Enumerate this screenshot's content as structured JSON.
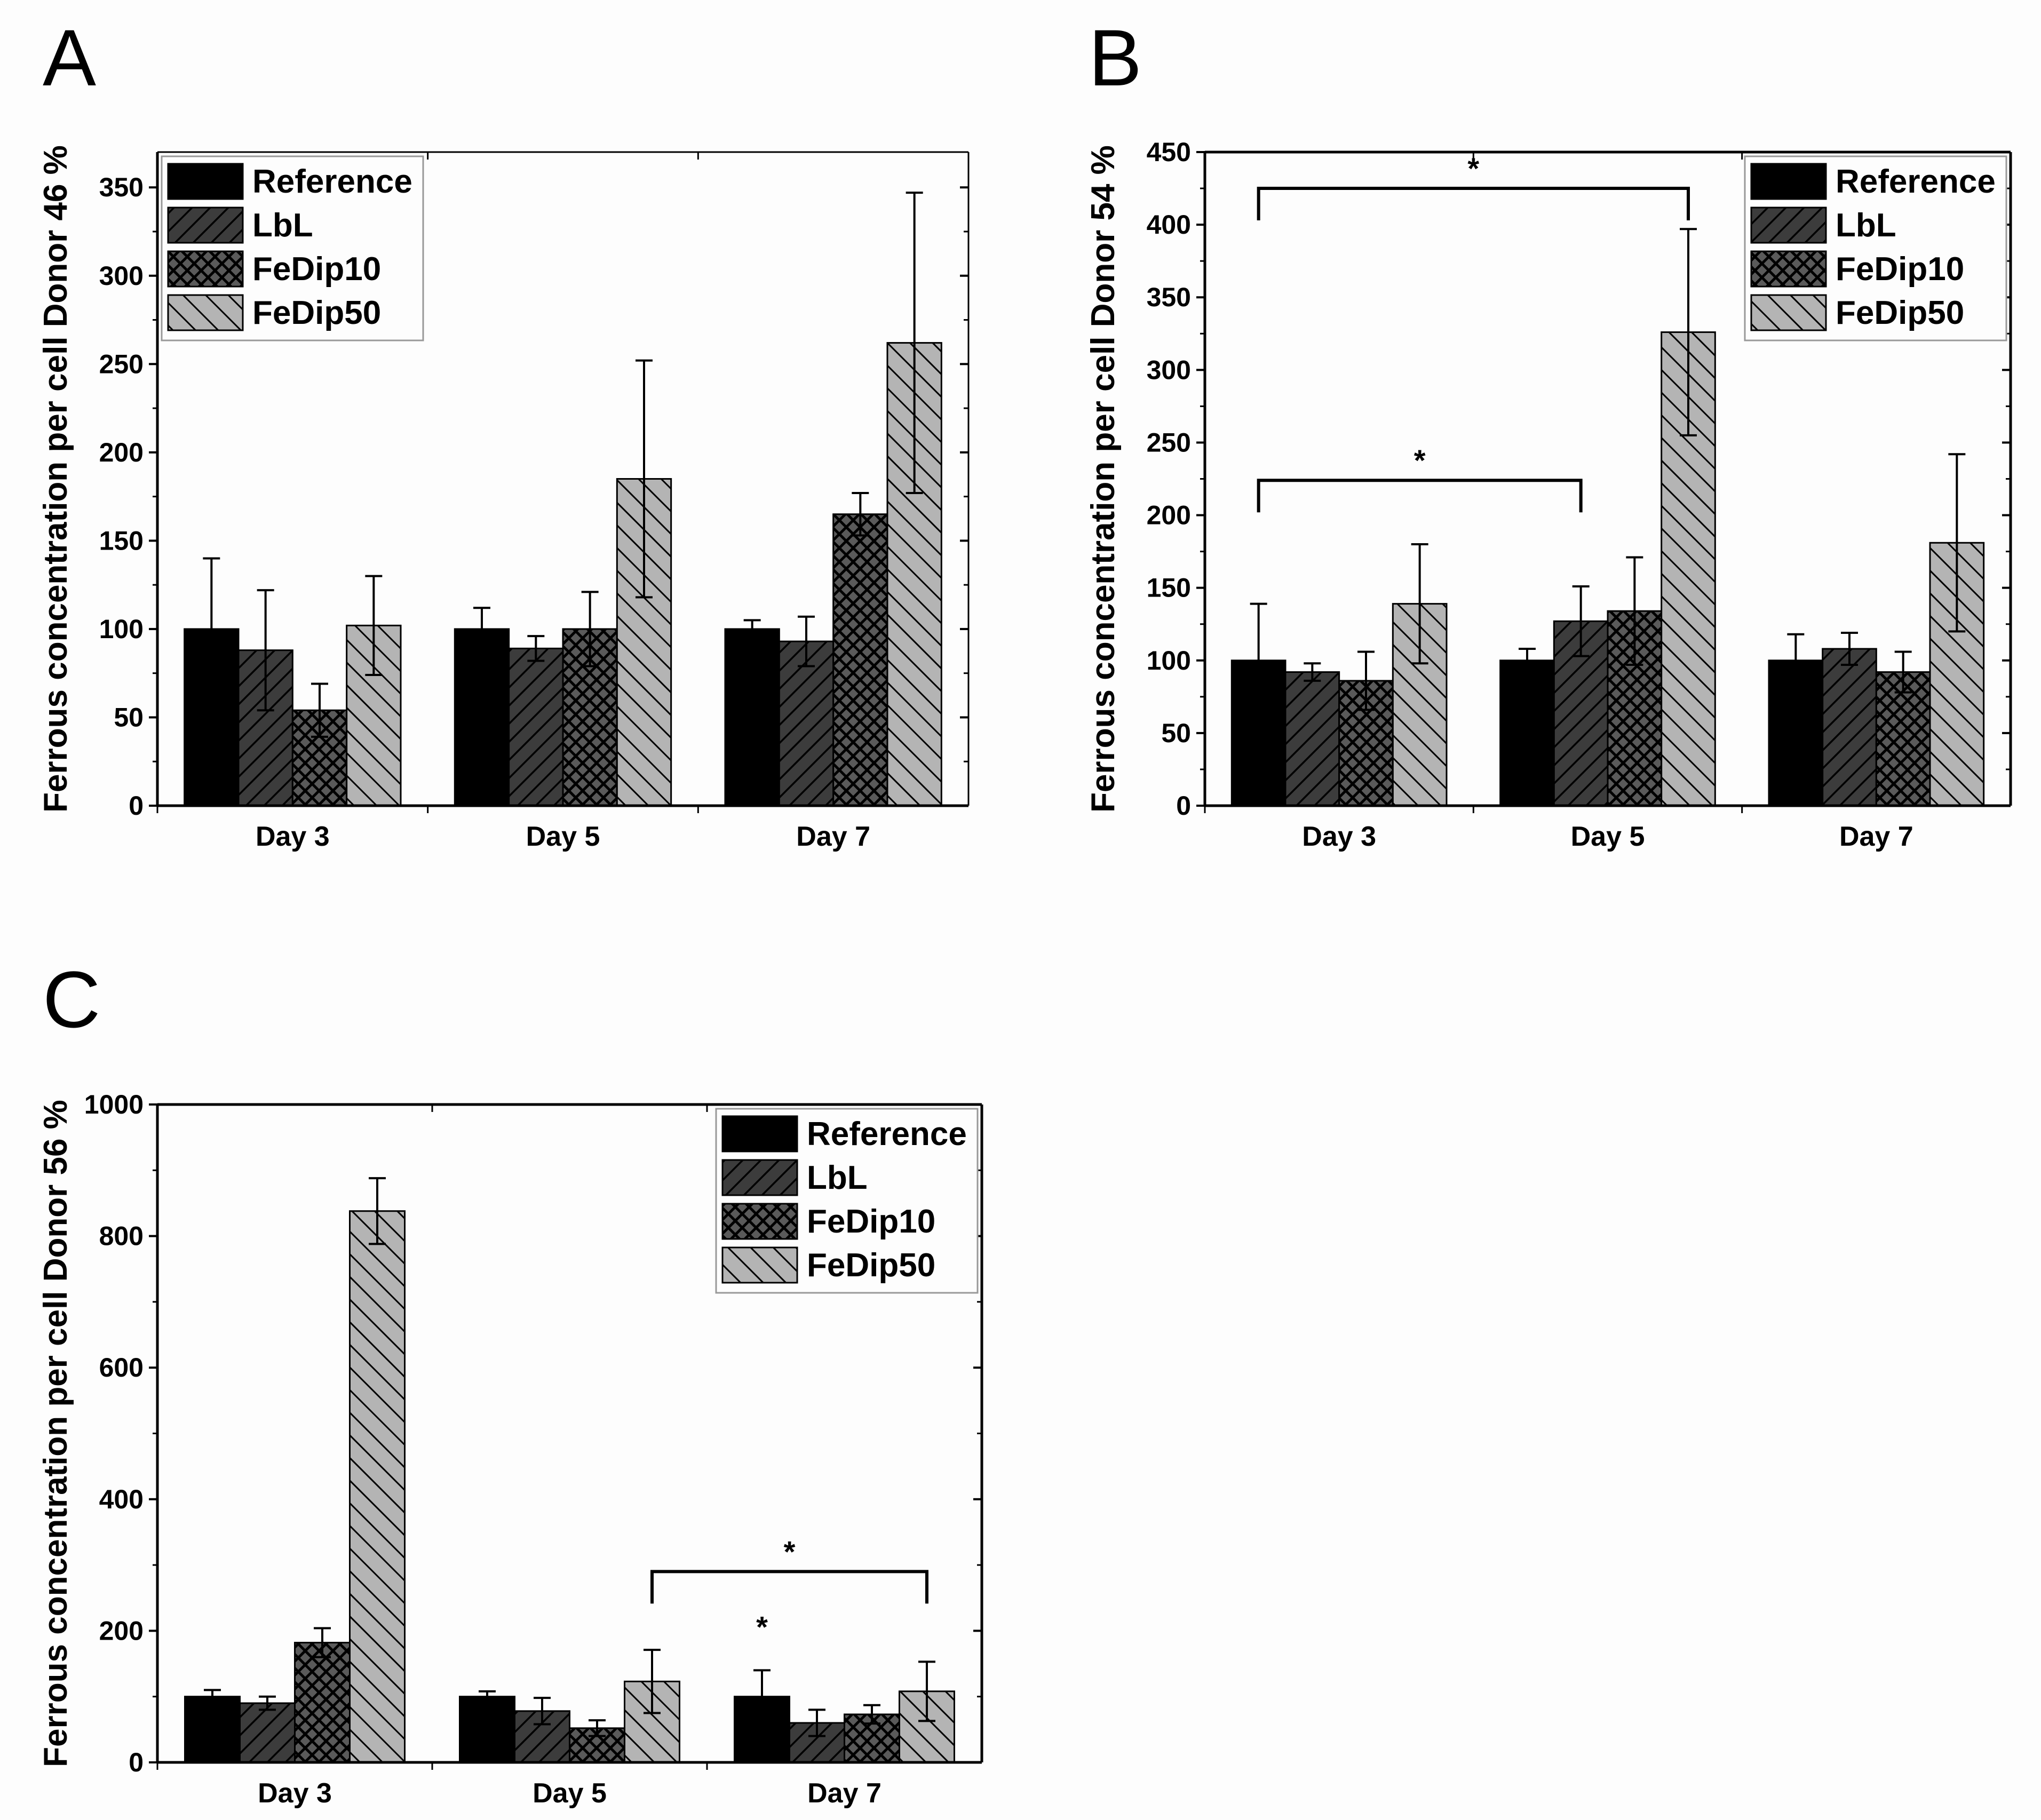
{
  "colors": {
    "Reference": "#000000",
    "LbL": "#3c3c3c",
    "FeDip10": "#5a5a5a",
    "FeDip50": "#b4b4b4",
    "hatch": "#000000",
    "background": "#fdfdfd"
  },
  "chart_data": [
    {
      "type": "bar",
      "panel": "A",
      "title": "",
      "xlabel": "",
      "ylabel": "Ferrous concentration per cell Donor 46 %",
      "categories": [
        "Day 3",
        "Day 5",
        "Day 7"
      ],
      "ylim": [
        0,
        370
      ],
      "yticks": [
        0,
        50,
        100,
        150,
        200,
        250,
        300,
        350
      ],
      "legend_position": "top-left",
      "series": [
        {
          "name": "Reference",
          "values": [
            100,
            100,
            100
          ],
          "errors": [
            40,
            12,
            5
          ]
        },
        {
          "name": "LbL",
          "values": [
            88,
            89,
            93
          ],
          "errors": [
            34,
            7,
            14
          ]
        },
        {
          "name": "FeDip10",
          "values": [
            54,
            100,
            165
          ],
          "errors": [
            15,
            21,
            12
          ]
        },
        {
          "name": "FeDip50",
          "values": [
            102,
            185,
            262
          ],
          "errors": [
            28,
            67,
            85
          ]
        }
      ],
      "significance": []
    },
    {
      "type": "bar",
      "panel": "B",
      "title": "",
      "xlabel": "",
      "ylabel": "Ferrous concentration per cell Donor 54 %",
      "categories": [
        "Day 3",
        "Day 5",
        "Day 7"
      ],
      "ylim": [
        0,
        450
      ],
      "yticks": [
        0,
        50,
        100,
        150,
        200,
        250,
        300,
        350,
        400,
        450
      ],
      "legend_position": "top-right",
      "series": [
        {
          "name": "Reference",
          "values": [
            100,
            100,
            100
          ],
          "errors": [
            39,
            8,
            18
          ]
        },
        {
          "name": "LbL",
          "values": [
            92,
            127,
            108
          ],
          "errors": [
            6,
            24,
            11
          ]
        },
        {
          "name": "FeDip10",
          "values": [
            86,
            134,
            92
          ],
          "errors": [
            20,
            37,
            14
          ]
        },
        {
          "name": "FeDip50",
          "values": [
            139,
            326,
            181
          ],
          "errors": [
            41,
            71,
            61
          ]
        }
      ],
      "significance": [
        {
          "from_category": 0,
          "from_series": 0,
          "to_category": 1,
          "to_series": 3,
          "level": 425,
          "label": "*"
        },
        {
          "from_category": 0,
          "from_series": 0,
          "to_category": 1,
          "to_series": 1,
          "level": 224,
          "label": "*"
        }
      ]
    },
    {
      "type": "bar",
      "panel": "C",
      "title": "",
      "xlabel": "",
      "ylabel": "Ferrous concentration per cell Donor 56 %",
      "categories": [
        "Day 3",
        "Day 5",
        "Day 7"
      ],
      "ylim": [
        0,
        1000
      ],
      "yticks": [
        0,
        200,
        400,
        600,
        800,
        1000
      ],
      "legend_position": "top-right",
      "series": [
        {
          "name": "Reference",
          "values": [
            100,
            100,
            100
          ],
          "errors": [
            10,
            8,
            40
          ]
        },
        {
          "name": "LbL",
          "values": [
            90,
            78,
            60
          ],
          "errors": [
            10,
            20,
            20
          ]
        },
        {
          "name": "FeDip10",
          "values": [
            182,
            52,
            73
          ],
          "errors": [
            22,
            12,
            14
          ]
        },
        {
          "name": "FeDip50",
          "values": [
            838,
            123,
            108
          ],
          "errors": [
            50,
            48,
            45
          ]
        }
      ],
      "significance": [
        {
          "from_category": 1,
          "from_series": 3,
          "to_category": 2,
          "to_series": 3,
          "level": 290,
          "label": "*"
        }
      ],
      "annotations": [
        {
          "category": 2,
          "series": 0,
          "value": 190,
          "label": "*"
        }
      ]
    }
  ]
}
